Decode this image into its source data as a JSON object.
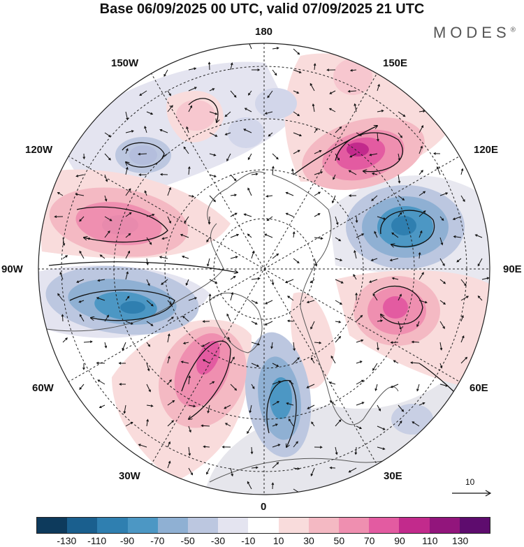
{
  "title": "Base 06/09/2025 00 UTC, valid 07/09/2025 21 UTC",
  "brand": "MODES",
  "brand_mark": "®",
  "map": {
    "projection": "north-polar-stereographic",
    "longitude_labels": {
      "lon_180": "180",
      "lon_150E": "150E",
      "lon_120E": "120E",
      "lon_90E": "90E",
      "lon_60E": "60E",
      "lon_30E": "30E",
      "lon_0": "0",
      "lon_30W": "30W",
      "lon_60W": "60W",
      "lon_90W": "90W",
      "lon_120W": "120W",
      "lon_150W": "150W"
    },
    "anomaly_centers": [
      {
        "id": "east-asia-high",
        "sign": "positive",
        "peak": 90
      },
      {
        "id": "kamchatka-low-blob",
        "sign": "negative",
        "peak": -30
      },
      {
        "id": "siberia-low",
        "sign": "negative",
        "peak": -90
      },
      {
        "id": "ural-high",
        "sign": "positive",
        "peak": 70
      },
      {
        "id": "scandinavia-low",
        "sign": "negative",
        "peak": -70
      },
      {
        "id": "north-atlantic-high",
        "sign": "positive",
        "peak": 70
      },
      {
        "id": "canada-low",
        "sign": "negative",
        "peak": -90
      },
      {
        "id": "north-pacific-high",
        "sign": "positive",
        "peak": 70
      },
      {
        "id": "aleutian-low",
        "sign": "negative",
        "peak": -50
      },
      {
        "id": "bering-high",
        "sign": "positive",
        "peak": 30
      }
    ]
  },
  "vector_reference": {
    "label": "10"
  },
  "colorbar": {
    "colors": [
      "#0d3a5c",
      "#1a5f8e",
      "#2f7fb0",
      "#4c97c4",
      "#8fb0d3",
      "#bcc7e0",
      "#e4e4f0",
      "#ffffff",
      "#f9dcdc",
      "#f4b9c3",
      "#ef8fb0",
      "#e35ba1",
      "#c22a8c",
      "#92157c",
      "#5e0c6e"
    ],
    "tick_labels": [
      "-130",
      "-110",
      "-90",
      "-70",
      "-50",
      "-30",
      "-10",
      "10",
      "30",
      "50",
      "70",
      "90",
      "110",
      "130"
    ]
  }
}
